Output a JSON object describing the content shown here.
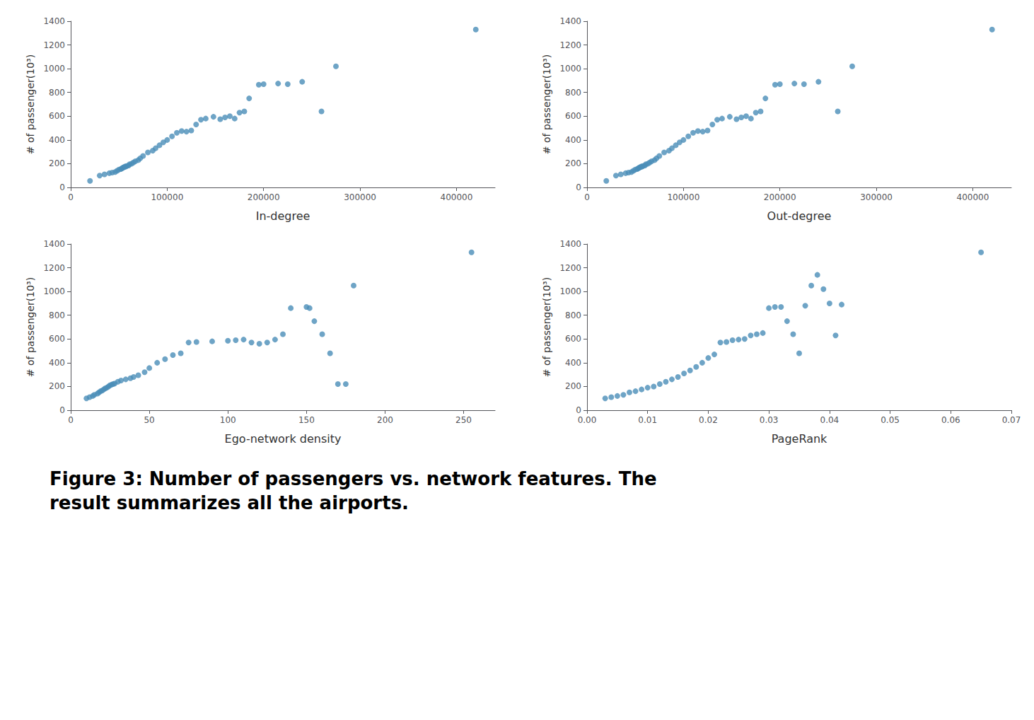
{
  "chart_data": [
    {
      "type": "scatter",
      "xlabel": "In-degree",
      "ylabel": "# of passenger(10³)",
      "color": "#4a8db8",
      "grid": false,
      "x": [
        20000,
        30000,
        35000,
        40000,
        43000,
        46000,
        48000,
        50000,
        52000,
        53000,
        54000,
        55000,
        56000,
        57000,
        58000,
        60000,
        61000,
        63000,
        65000,
        67000,
        70000,
        72000,
        75000,
        80000,
        85000,
        88000,
        92000,
        96000,
        100000,
        105000,
        110000,
        115000,
        120000,
        125000,
        130000,
        135000,
        140000,
        148000,
        155000,
        160000,
        165000,
        170000,
        175000,
        180000,
        185000,
        195000,
        200000,
        215000,
        225000,
        240000,
        260000,
        275000,
        420000
      ],
      "values": [
        55,
        100,
        110,
        120,
        125,
        130,
        140,
        150,
        155,
        160,
        165,
        170,
        175,
        175,
        180,
        185,
        195,
        200,
        210,
        220,
        230,
        245,
        265,
        295,
        310,
        330,
        355,
        380,
        400,
        430,
        460,
        475,
        470,
        480,
        530,
        570,
        580,
        595,
        575,
        590,
        600,
        580,
        630,
        640,
        750,
        865,
        870,
        875,
        870,
        890,
        640,
        1020,
        1330
      ],
      "xlim": [
        0,
        440000
      ],
      "xticks": [
        0,
        100000,
        200000,
        300000,
        400000
      ],
      "ylim": [
        0,
        1400
      ],
      "yticks": [
        0,
        200,
        400,
        600,
        800,
        1000,
        1200,
        1400
      ]
    },
    {
      "type": "scatter",
      "xlabel": "Out-degree",
      "ylabel": "# of passenger(10³)",
      "color": "#4a8db8",
      "grid": false,
      "x": [
        20000,
        30000,
        35000,
        40000,
        43000,
        46000,
        48000,
        50000,
        52000,
        53000,
        54000,
        55000,
        56000,
        57000,
        58000,
        60000,
        61000,
        63000,
        65000,
        67000,
        70000,
        72000,
        75000,
        80000,
        85000,
        88000,
        92000,
        96000,
        100000,
        105000,
        110000,
        115000,
        120000,
        125000,
        130000,
        135000,
        140000,
        148000,
        155000,
        160000,
        165000,
        170000,
        175000,
        180000,
        185000,
        195000,
        200000,
        215000,
        225000,
        240000,
        260000,
        275000,
        420000
      ],
      "values": [
        55,
        100,
        110,
        120,
        125,
        130,
        140,
        150,
        155,
        160,
        165,
        170,
        175,
        175,
        180,
        185,
        195,
        200,
        210,
        220,
        230,
        245,
        265,
        295,
        310,
        330,
        355,
        380,
        400,
        430,
        460,
        475,
        470,
        480,
        530,
        570,
        580,
        595,
        575,
        590,
        600,
        580,
        630,
        640,
        750,
        865,
        870,
        875,
        870,
        890,
        640,
        1020,
        1330
      ],
      "xlim": [
        0,
        440000
      ],
      "xticks": [
        0,
        100000,
        200000,
        300000,
        400000
      ],
      "ylim": [
        0,
        1400
      ],
      "yticks": [
        0,
        200,
        400,
        600,
        800,
        1000,
        1200,
        1400
      ]
    },
    {
      "type": "scatter",
      "xlabel": "Ego-network density",
      "ylabel": "# of passenger(10³)",
      "color": "#4a8db8",
      "grid": false,
      "x": [
        10,
        12,
        14,
        15,
        17,
        18,
        19,
        20,
        21,
        22,
        23,
        24,
        25,
        26,
        27,
        28,
        30,
        32,
        35,
        38,
        40,
        43,
        47,
        50,
        55,
        60,
        65,
        70,
        75,
        80,
        90,
        100,
        105,
        110,
        115,
        120,
        125,
        130,
        135,
        140,
        150,
        152,
        155,
        160,
        165,
        170,
        175,
        180,
        255
      ],
      "values": [
        100,
        110,
        120,
        130,
        140,
        150,
        160,
        165,
        175,
        185,
        190,
        200,
        210,
        215,
        220,
        225,
        240,
        250,
        260,
        270,
        280,
        295,
        320,
        355,
        400,
        430,
        465,
        480,
        570,
        575,
        580,
        585,
        590,
        595,
        570,
        560,
        570,
        595,
        640,
        860,
        870,
        860,
        750,
        640,
        480,
        220,
        220,
        1050,
        1330
      ],
      "xlim": [
        0,
        270
      ],
      "xticks": [
        0,
        50,
        100,
        150,
        200,
        250
      ],
      "ylim": [
        0,
        1400
      ],
      "yticks": [
        0,
        200,
        400,
        600,
        800,
        1000,
        1200,
        1400
      ]
    },
    {
      "type": "scatter",
      "xlabel": "PageRank",
      "ylabel": "# of passenger(10³)",
      "color": "#4a8db8",
      "grid": false,
      "x": [
        0.003,
        0.004,
        0.005,
        0.006,
        0.007,
        0.008,
        0.009,
        0.01,
        0.011,
        0.012,
        0.013,
        0.014,
        0.015,
        0.016,
        0.017,
        0.018,
        0.019,
        0.02,
        0.021,
        0.022,
        0.023,
        0.024,
        0.025,
        0.026,
        0.027,
        0.028,
        0.029,
        0.03,
        0.031,
        0.032,
        0.033,
        0.034,
        0.035,
        0.036,
        0.037,
        0.038,
        0.039,
        0.04,
        0.041,
        0.042,
        0.065
      ],
      "values": [
        100,
        110,
        120,
        130,
        150,
        160,
        175,
        190,
        200,
        220,
        240,
        260,
        280,
        310,
        335,
        365,
        400,
        440,
        470,
        570,
        575,
        590,
        595,
        600,
        630,
        640,
        650,
        860,
        870,
        870,
        750,
        640,
        480,
        880,
        1050,
        1140,
        1020,
        900,
        630,
        890,
        1330
      ],
      "xlim": [
        0,
        0.07
      ],
      "xticks": [
        {
          "value": 0,
          "label": "0.00"
        },
        {
          "value": 0.01,
          "label": "0.01"
        },
        {
          "value": 0.02,
          "label": "0.02"
        },
        {
          "value": 0.03,
          "label": "0.03"
        },
        {
          "value": 0.04,
          "label": "0.04"
        },
        {
          "value": 0.05,
          "label": "0.05"
        },
        {
          "value": 0.06,
          "label": "0.06"
        },
        {
          "value": 0.07,
          "label": "0.07"
        }
      ],
      "ylim": [
        0,
        1400
      ],
      "yticks": [
        0,
        200,
        400,
        600,
        800,
        1000,
        1200,
        1400
      ]
    }
  ],
  "caption": "Figure 3: Number of passengers vs. network features. The\nresult summarizes all the airports."
}
